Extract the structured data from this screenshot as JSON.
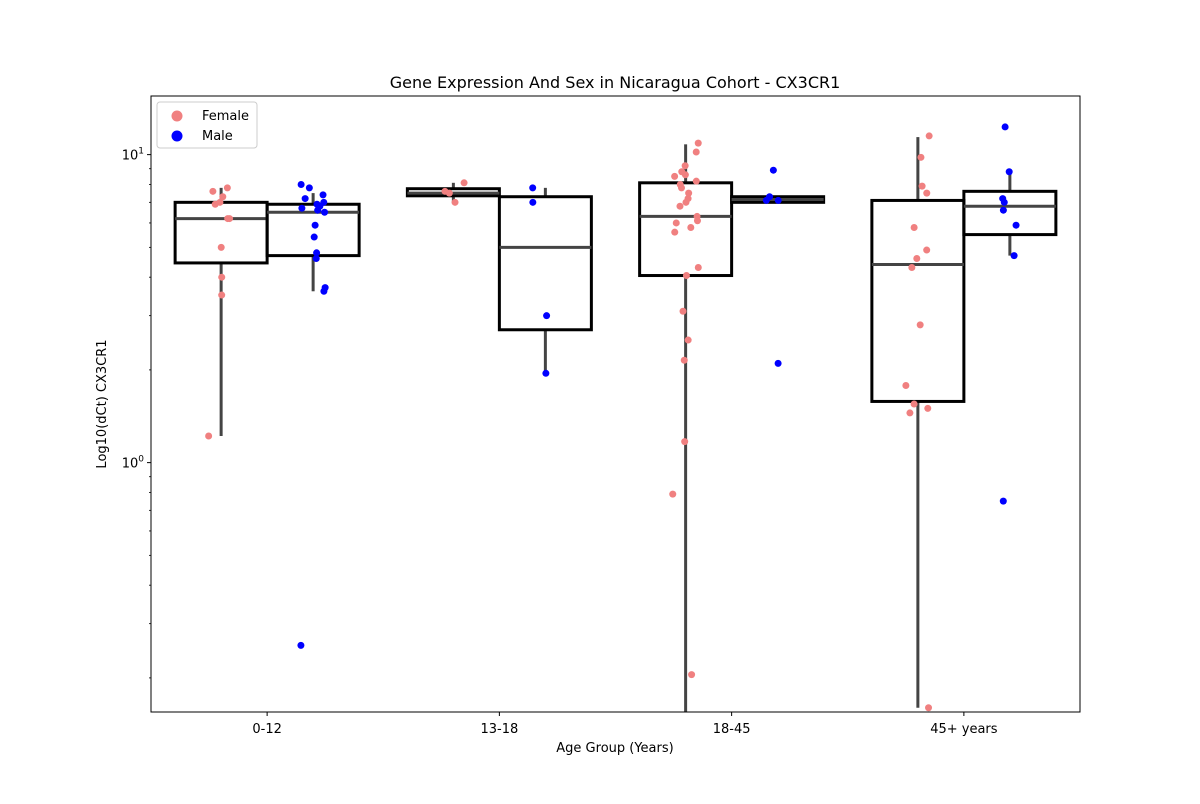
{
  "chart_data": {
    "type": "box",
    "title": "Gene Expression And Sex in Nicaragua Cohort - CX3CR1",
    "xlabel": "Age Group (Years)",
    "ylabel": "Log10(dCt) CX3CR1",
    "yscale": "log",
    "ylim": [
      0.155,
      15.5
    ],
    "y_ticks": [
      {
        "value": 1,
        "base": "10",
        "exp": "0"
      },
      {
        "value": 10,
        "base": "10",
        "exp": "1"
      }
    ],
    "categories": [
      "0-12",
      "13-18",
      "18-45",
      "45+ years"
    ],
    "grid": false,
    "legend": {
      "position": "upper-left",
      "entries": [
        "Female",
        "Male"
      ]
    },
    "series": [
      {
        "name": "Female",
        "color": "#F08080",
        "boxes": [
          {
            "category": "0-12",
            "whisker_low": 1.22,
            "q1": 4.45,
            "median": 6.2,
            "q3": 7.0,
            "whisker_high": 7.8
          },
          {
            "category": "13-18",
            "whisker_low": 6.95,
            "q1": 7.35,
            "median": 7.5,
            "q3": 7.75,
            "whisker_high": 8.1
          },
          {
            "category": "18-45",
            "whisker_low": 0.155,
            "q1": 4.05,
            "median": 6.3,
            "q3": 8.1,
            "whisker_high": 10.8
          },
          {
            "category": "45+ years",
            "whisker_low": 0.16,
            "q1": 1.58,
            "median": 4.4,
            "q3": 7.1,
            "whisker_high": 11.4
          }
        ],
        "points": [
          [
            0,
            7.6
          ],
          [
            0,
            7.8
          ],
          [
            0,
            7.3
          ],
          [
            0,
            7.0
          ],
          [
            0,
            6.9
          ],
          [
            0,
            6.2
          ],
          [
            0,
            6.2
          ],
          [
            0,
            5.0
          ],
          [
            0,
            4.0
          ],
          [
            0,
            3.5
          ],
          [
            0,
            1.22
          ],
          [
            1,
            8.1
          ],
          [
            1,
            7.6
          ],
          [
            1,
            7.5
          ],
          [
            1,
            7.0
          ],
          [
            2,
            10.9
          ],
          [
            2,
            10.2
          ],
          [
            2,
            9.2
          ],
          [
            2,
            8.8
          ],
          [
            2,
            8.6
          ],
          [
            2,
            8.5
          ],
          [
            2,
            8.2
          ],
          [
            2,
            8.0
          ],
          [
            2,
            7.8
          ],
          [
            2,
            7.5
          ],
          [
            2,
            7.2
          ],
          [
            2,
            7.0
          ],
          [
            2,
            6.8
          ],
          [
            2,
            6.3
          ],
          [
            2,
            6.1
          ],
          [
            2,
            6.0
          ],
          [
            2,
            5.8
          ],
          [
            2,
            5.6
          ],
          [
            2,
            4.3
          ],
          [
            2,
            4.05
          ],
          [
            2,
            3.1
          ],
          [
            2,
            2.5
          ],
          [
            2,
            2.15
          ],
          [
            2,
            1.17
          ],
          [
            2,
            0.79
          ],
          [
            2,
            0.205
          ],
          [
            3,
            11.5
          ],
          [
            3,
            9.8
          ],
          [
            3,
            7.9
          ],
          [
            3,
            7.5
          ],
          [
            3,
            5.8
          ],
          [
            3,
            4.9
          ],
          [
            3,
            4.6
          ],
          [
            3,
            4.3
          ],
          [
            3,
            2.8
          ],
          [
            3,
            1.78
          ],
          [
            3,
            1.55
          ],
          [
            3,
            1.5
          ],
          [
            3,
            1.45
          ],
          [
            3,
            0.16
          ]
        ]
      },
      {
        "name": "Male",
        "color": "#0000FF",
        "boxes": [
          {
            "category": "0-12",
            "whisker_low": 3.6,
            "q1": 4.7,
            "median": 6.5,
            "q3": 6.9,
            "whisker_high": 7.5
          },
          {
            "category": "13-18",
            "whisker_low": 1.95,
            "q1": 2.7,
            "median": 5.0,
            "q3": 7.3,
            "whisker_high": 7.8
          },
          {
            "category": "18-45",
            "whisker_low": 7.0,
            "q1": 7.0,
            "median": 7.15,
            "q3": 7.3,
            "whisker_high": 7.3
          },
          {
            "category": "45+ years",
            "whisker_low": 4.7,
            "q1": 5.5,
            "median": 6.8,
            "q3": 7.6,
            "whisker_high": 8.8
          }
        ],
        "points": [
          [
            0,
            8.0
          ],
          [
            0,
            7.8
          ],
          [
            0,
            7.4
          ],
          [
            0,
            7.2
          ],
          [
            0,
            7.0
          ],
          [
            0,
            6.9
          ],
          [
            0,
            6.8
          ],
          [
            0,
            6.7
          ],
          [
            0,
            6.6
          ],
          [
            0,
            6.5
          ],
          [
            0,
            5.9
          ],
          [
            0,
            5.4
          ],
          [
            0,
            4.8
          ],
          [
            0,
            4.6
          ],
          [
            0,
            3.7
          ],
          [
            0,
            3.6
          ],
          [
            0,
            0.255
          ],
          [
            1,
            7.8
          ],
          [
            1,
            7.0
          ],
          [
            1,
            3.0
          ],
          [
            1,
            1.95
          ],
          [
            2,
            8.9
          ],
          [
            2,
            7.3
          ],
          [
            2,
            7.1
          ],
          [
            2,
            7.1
          ],
          [
            2,
            2.1
          ],
          [
            3,
            12.3
          ],
          [
            3,
            8.8
          ],
          [
            3,
            7.2
          ],
          [
            3,
            7.0
          ],
          [
            3,
            6.6
          ],
          [
            3,
            5.9
          ],
          [
            3,
            4.7
          ],
          [
            3,
            0.75
          ]
        ]
      }
    ]
  }
}
